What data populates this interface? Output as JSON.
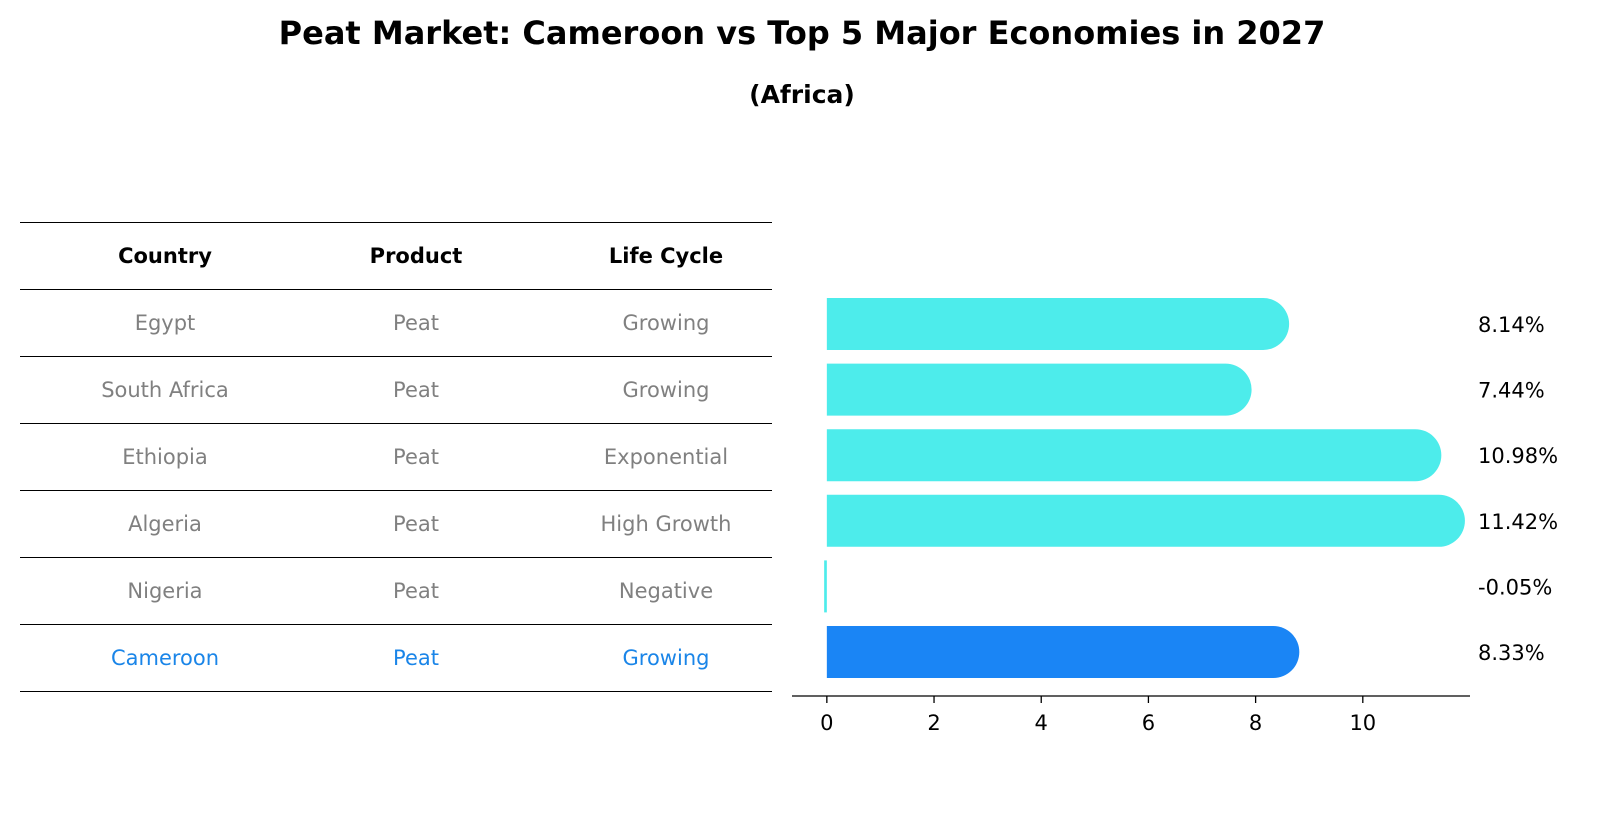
{
  "title": "Peat Market: Cameroon vs Top 5 Major Economies in 2027",
  "subtitle": "(Africa)",
  "table": {
    "headers": [
      "Country",
      "Product",
      "Life Cycle"
    ],
    "rows": [
      [
        "Egypt",
        "Peat",
        "Growing"
      ],
      [
        "South Africa",
        "Peat",
        "Growing"
      ],
      [
        "Ethiopia",
        "Peat",
        "Exponential"
      ],
      [
        "Algeria",
        "Peat",
        "High Growth"
      ],
      [
        "Nigeria",
        "Peat",
        "Negative"
      ],
      [
        "Cameroon",
        "Peat",
        "Growing"
      ]
    ],
    "highlight_row": 5
  },
  "chart_data": {
    "type": "bar",
    "orientation": "horizontal",
    "categories": [
      "Egypt",
      "South Africa",
      "Ethiopia",
      "Algeria",
      "Nigeria",
      "Cameroon"
    ],
    "values": [
      8.14,
      7.44,
      10.98,
      11.42,
      -0.05,
      8.33
    ],
    "value_labels": [
      "8.14%",
      "7.44%",
      "10.98%",
      "11.42%",
      "-0.05%",
      "8.33%"
    ],
    "xticks": [
      0,
      2,
      4,
      6,
      8,
      10
    ],
    "xlim": [
      -0.65,
      12.0
    ],
    "colors": {
      "default": "#4deceb",
      "highlight": "#1a85f5"
    },
    "highlight_index": 5,
    "grid": false
  }
}
